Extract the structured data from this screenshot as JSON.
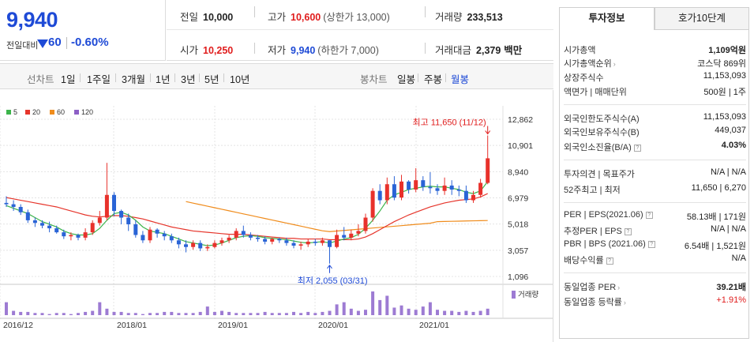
{
  "price": {
    "current": "9,940",
    "change_label": "전일대비",
    "change_value": "60",
    "change_rate": "-0.60%"
  },
  "quote": {
    "prev_close_label": "전일",
    "prev_close": "10,000",
    "high_label": "고가",
    "high": "10,600",
    "upper_limit_label": "(상한가 13,000)",
    "volume_label": "거래량",
    "volume": "233,513",
    "open_label": "시가",
    "open": "10,250",
    "low_label": "저가",
    "low": "9,940",
    "lower_limit_label": "(하한가 7,000)",
    "value_label": "거래대금",
    "value": "2,379",
    "value_unit": "백만"
  },
  "period_bar": {
    "line_chart": "선차트",
    "ranges": [
      "1일",
      "1주일",
      "3개월",
      "1년",
      "3년",
      "5년",
      "10년"
    ],
    "candle_chart": "봉차트",
    "intervals": [
      "일봉",
      "주봉",
      "월봉"
    ],
    "active_interval": "월봉"
  },
  "legend": [
    {
      "label": "5",
      "color": "#3cb44b"
    },
    {
      "label": "20",
      "color": "#e6352b"
    },
    {
      "label": "60",
      "color": "#f08c1c"
    },
    {
      "label": "120",
      "color": "#8c5fc5"
    }
  ],
  "chart_data": {
    "type": "candlestick",
    "y_ticks": [
      "12,862",
      "10,901",
      "8,940",
      "6,979",
      "5,018",
      "3,057",
      "1,096"
    ],
    "x_ticks": [
      "2016/12",
      "2018/01",
      "2019/01",
      "2020/01",
      "2021/01"
    ],
    "max_label": "최고 11,650 (11/12)",
    "min_label": "최저 2,055 (03/31)",
    "volume_label": "거래량",
    "up_color": "#e8312b",
    "down_color": "#2a64d6",
    "candles": [
      [
        6600,
        6500,
        7100,
        6300
      ],
      [
        6500,
        6300,
        6800,
        6000
      ],
      [
        6300,
        5900,
        6500,
        5700
      ],
      [
        5900,
        5300,
        6100,
        5100
      ],
      [
        5300,
        5100,
        5500,
        4800
      ],
      [
        5100,
        4900,
        5300,
        4700
      ],
      [
        4900,
        4700,
        5200,
        4400
      ],
      [
        4700,
        4400,
        4900,
        4300
      ],
      [
        4400,
        4100,
        4600,
        3900
      ],
      [
        4100,
        4200,
        4400,
        3800
      ],
      [
        4200,
        4000,
        4300,
        3800
      ],
      [
        4000,
        4400,
        4700,
        3800
      ],
      [
        4400,
        5100,
        5300,
        4200
      ],
      [
        5100,
        5500,
        6000,
        4900
      ],
      [
        5500,
        7200,
        9600,
        5300
      ],
      [
        7200,
        6000,
        7400,
        5600
      ],
      [
        6000,
        5500,
        6100,
        5000
      ],
      [
        5500,
        5000,
        5800,
        4500
      ],
      [
        5000,
        4200,
        5300,
        4000
      ],
      [
        4200,
        3800,
        4500,
        3600
      ],
      [
        3800,
        4600,
        4800,
        3600
      ],
      [
        4600,
        4300,
        4700,
        4000
      ],
      [
        4300,
        4100,
        4500,
        3800
      ],
      [
        4100,
        3800,
        4300,
        3600
      ],
      [
        3800,
        3500,
        4000,
        3200
      ],
      [
        3500,
        3300,
        3800,
        2900
      ],
      [
        3300,
        3600,
        3800,
        3100
      ],
      [
        3600,
        3200,
        3800,
        3000
      ],
      [
        3200,
        3300,
        3500,
        3000
      ],
      [
        3300,
        3600,
        3800,
        3200
      ],
      [
        3600,
        3800,
        4000,
        3400
      ],
      [
        3800,
        4000,
        4200,
        3600
      ],
      [
        4000,
        4500,
        4700,
        3800
      ],
      [
        4500,
        4200,
        4900,
        4000
      ],
      [
        4200,
        4000,
        4400,
        3800
      ],
      [
        4000,
        3900,
        4200,
        3700
      ],
      [
        3900,
        3700,
        4100,
        3500
      ],
      [
        3700,
        3900,
        4000,
        3500
      ],
      [
        3900,
        3800,
        4000,
        3600
      ],
      [
        3800,
        3600,
        4000,
        3400
      ],
      [
        3600,
        3400,
        3800,
        3200
      ],
      [
        3400,
        3500,
        3700,
        3100
      ],
      [
        3500,
        3700,
        3900,
        3300
      ],
      [
        3700,
        3600,
        3900,
        3400
      ],
      [
        3600,
        3800,
        4000,
        3400
      ],
      [
        3800,
        3300,
        3800,
        2055
      ],
      [
        3300,
        4200,
        4600,
        3200
      ],
      [
        4200,
        4000,
        4800,
        3800
      ],
      [
        4000,
        4300,
        4600,
        3800
      ],
      [
        4300,
        4500,
        5000,
        4100
      ],
      [
        4500,
        5500,
        5800,
        4300
      ],
      [
        5500,
        7500,
        7700,
        5200
      ],
      [
        7500,
        6800,
        8000,
        6500
      ],
      [
        6800,
        8000,
        8500,
        6500
      ],
      [
        8000,
        7000,
        8600,
        6800
      ],
      [
        7000,
        8200,
        8700,
        6800
      ],
      [
        8200,
        7600,
        8300,
        7300
      ],
      [
        7600,
        8300,
        9200,
        7400
      ],
      [
        8300,
        7800,
        8600,
        7500
      ],
      [
        7800,
        7700,
        8900,
        7300
      ],
      [
        7700,
        7500,
        8000,
        7200
      ],
      [
        7500,
        7900,
        8500,
        7200
      ],
      [
        7900,
        7600,
        8300,
        7200
      ],
      [
        7600,
        7500,
        7900,
        7100
      ],
      [
        7500,
        6800,
        7900,
        6600
      ],
      [
        6800,
        7200,
        7500,
        6600
      ],
      [
        7200,
        8100,
        8400,
        7000
      ],
      [
        8100,
        9940,
        11650,
        8000
      ]
    ],
    "volume": [
      12,
      4,
      3,
      3,
      2,
      2,
      1,
      2,
      2,
      1,
      2,
      3,
      4,
      12,
      6,
      3,
      3,
      2,
      2,
      1,
      2,
      2,
      3,
      3,
      2,
      2,
      2,
      3,
      8,
      3,
      4,
      3,
      2,
      2,
      2,
      2,
      3,
      2,
      2,
      2,
      3,
      2,
      3,
      2,
      3,
      4,
      10,
      12,
      6,
      4,
      5,
      22,
      14,
      18,
      7,
      9,
      6,
      5,
      8,
      12,
      5,
      4,
      4,
      3,
      4,
      3,
      4,
      6
    ],
    "ma5": [
      6400,
      6200,
      6000,
      5800,
      5500,
      5200,
      5000,
      4800,
      4500,
      4300,
      4200,
      4200,
      4300,
      4700,
      5300,
      5800,
      5900,
      5700,
      5300,
      4800,
      4500,
      4400,
      4300,
      4100,
      3900,
      3700,
      3600,
      3500,
      3400,
      3450,
      3600,
      3800,
      4000,
      4100,
      4150,
      4100,
      4000,
      3950,
      3900,
      3850,
      3750,
      3650,
      3600,
      3650,
      3700,
      3600,
      3750,
      3900,
      4000,
      4250,
      4700,
      5300,
      6000,
      6800,
      7200,
      7400,
      7600,
      7700,
      7800,
      7850,
      7800,
      7800,
      7700,
      7600,
      7400,
      7300,
      7500,
      8200
    ],
    "ma20": [
      7000,
      6900,
      6800,
      6700,
      6600,
      6500,
      6400,
      6300,
      6150,
      6000,
      5850,
      5700,
      5600,
      5550,
      5600,
      5650,
      5650,
      5600,
      5500,
      5400,
      5250,
      5100,
      4950,
      4800,
      4700,
      4600,
      4500,
      4450,
      4400,
      4350,
      4300,
      4250,
      4250,
      4250,
      4200,
      4150,
      4100,
      4050,
      4000,
      3950,
      3950,
      3900,
      3900,
      3900,
      3900,
      3850,
      3850,
      3850,
      3850,
      3900,
      4050,
      4300,
      4600,
      4900,
      5200,
      5450,
      5700,
      5900,
      6100,
      6300,
      6450,
      6600,
      6700,
      6800,
      6850,
      6900,
      7050,
      7300
    ],
    "ma60": [
      null,
      null,
      null,
      null,
      null,
      null,
      null,
      null,
      null,
      null,
      null,
      null,
      null,
      null,
      null,
      null,
      null,
      null,
      null,
      null,
      null,
      null,
      null,
      null,
      null,
      null,
      null,
      null,
      null,
      null,
      null,
      null,
      null,
      null,
      null,
      null,
      null,
      null,
      null,
      null,
      null,
      null,
      null,
      null,
      null,
      null,
      null,
      null,
      null,
      null,
      null,
      null,
      null,
      null,
      null,
      null,
      null,
      null,
      null,
      null,
      null,
      null,
      null,
      null,
      null,
      null,
      null,
      null
    ],
    "ma120_visible": false
  },
  "panel": {
    "tab_invest": "투자정보",
    "tab_orderbook": "호가10단계",
    "rows": [
      {
        "k": "시가총액",
        "v": "1,109억원",
        "bold": true
      },
      {
        "k": "시가총액순위",
        "v": "코스닥 869위",
        "chev": true
      },
      {
        "k": "상장주식수",
        "v": "11,153,093"
      },
      {
        "k": "액면가 | 매매단위",
        "v": "500원 | 1주"
      },
      {
        "k": "외국인한도주식수(A)",
        "v": "11,153,093"
      },
      {
        "k": "외국인보유주식수(B)",
        "v": "449,037"
      },
      {
        "k": "외국인소진율(B/A)",
        "v": "4.03%",
        "bold": true,
        "q": true
      },
      {
        "k": "투자의견 | 목표주가",
        "v": "N/A | N/A"
      },
      {
        "k": "52주최고 | 최저",
        "v": "11,650 | 6,270"
      },
      {
        "k": "PER | EPS(2021.06)",
        "v": "58.13배 | 171원",
        "q": true
      },
      {
        "k": "추정PER | EPS",
        "v": "N/A | N/A",
        "q": true
      },
      {
        "k": "PBR | BPS (2021.06)",
        "v": "6.54배 | 1,521원",
        "q": true
      },
      {
        "k": "배당수익률",
        "v": "N/A",
        "q": true
      },
      {
        "k": "동일업종 PER",
        "v": "39.21배",
        "bold": true,
        "chev": true
      },
      {
        "k": "동일업종 등락률",
        "v": "+1.91%",
        "red": true,
        "chev": true
      }
    ]
  }
}
